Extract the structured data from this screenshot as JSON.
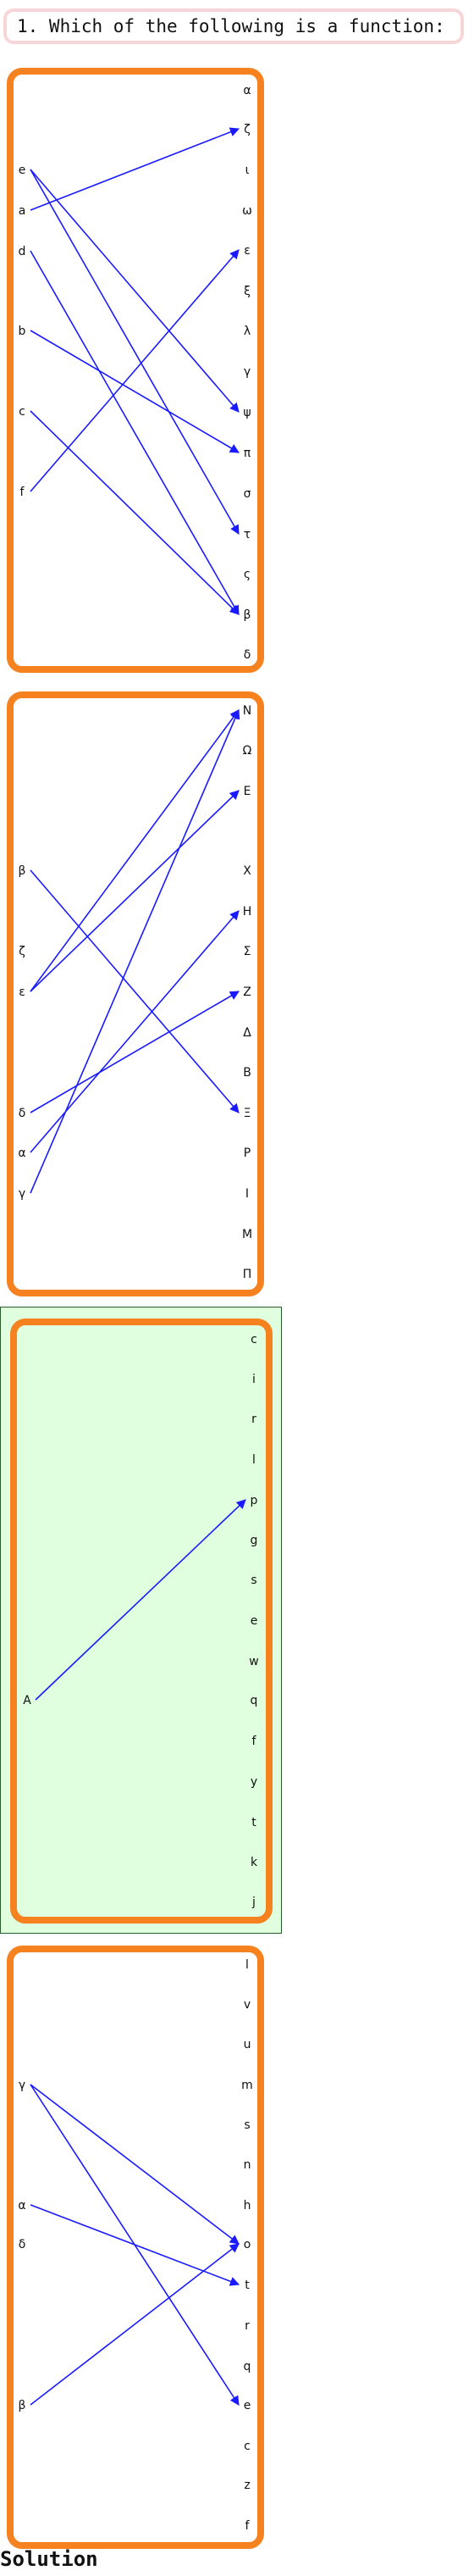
{
  "question": "1. Which of the following is a function:",
  "solution_heading": "Solution",
  "colors": {
    "panel_border": "#f5811f",
    "arrow": "#1a1aff",
    "selected_background": "#dfffdf",
    "question_border": "#f8d6d8"
  },
  "options": [
    {
      "selected": false,
      "domain": [
        "e",
        "a",
        "d",
        "b",
        "c",
        "f"
      ],
      "codomain": [
        "α",
        "ζ",
        "ι",
        "ω",
        "ε",
        "ξ",
        "λ",
        "γ",
        "ψ",
        "π",
        "σ",
        "τ",
        "ς",
        "β",
        "δ"
      ],
      "mappings": [
        [
          "e",
          "ψ"
        ],
        [
          "e",
          "τ"
        ],
        [
          "a",
          "ζ"
        ],
        [
          "d",
          "β"
        ],
        [
          "b",
          "π"
        ],
        [
          "c",
          "β"
        ],
        [
          "f",
          "ε"
        ]
      ]
    },
    {
      "selected": false,
      "domain": [
        "β",
        "ζ",
        "ε",
        "δ",
        "α",
        "γ"
      ],
      "codomain": [
        "N",
        "Ω",
        "E",
        "Χ",
        "H",
        "Σ",
        "Z",
        "Δ",
        "B",
        "Ξ",
        "P",
        "I",
        "M",
        "Π"
      ],
      "mappings": [
        [
          "β",
          "Ξ"
        ],
        [
          "ε",
          "N"
        ],
        [
          "ε",
          "E"
        ],
        [
          "δ",
          "Z"
        ],
        [
          "α",
          "H"
        ],
        [
          "γ",
          "N"
        ]
      ]
    },
    {
      "selected": true,
      "domain": [
        "A"
      ],
      "codomain": [
        "c",
        "i",
        "r",
        "l",
        "p",
        "g",
        "s",
        "e",
        "w",
        "q",
        "f",
        "y",
        "t",
        "k",
        "j"
      ],
      "mappings": [
        [
          "A",
          "p"
        ]
      ]
    },
    {
      "selected": false,
      "domain": [
        "γ",
        "α",
        "δ",
        "β"
      ],
      "codomain": [
        "l",
        "v",
        "u",
        "m",
        "s",
        "n",
        "h",
        "o",
        "t",
        "r",
        "q",
        "e",
        "c",
        "z",
        "f"
      ],
      "mappings": [
        [
          "γ",
          "o"
        ],
        [
          "γ",
          "e"
        ],
        [
          "α",
          "t"
        ],
        [
          "β",
          "o"
        ]
      ]
    }
  ]
}
